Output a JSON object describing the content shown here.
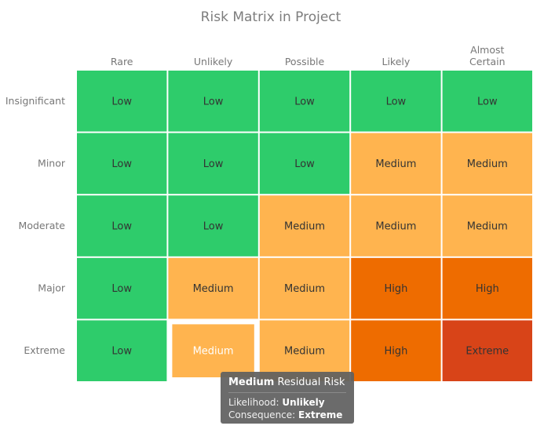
{
  "chart_data": {
    "type": "heatmap",
    "title": "Risk Matrix in Project",
    "x_categories": [
      "Rare",
      "Unlikely",
      "Possible",
      "Likely",
      [
        "Almost",
        "Certain"
      ]
    ],
    "y_categories": [
      "Insignificant",
      "Minor",
      "Moderate",
      "Major",
      "Extreme"
    ],
    "cells": [
      [
        "Low",
        "Low",
        "Low",
        "Low",
        "Low"
      ],
      [
        "Low",
        "Low",
        "Low",
        "Medium",
        "Medium"
      ],
      [
        "Low",
        "Low",
        "Medium",
        "Medium",
        "Medium"
      ],
      [
        "Low",
        "Medium",
        "Medium",
        "High",
        "High"
      ],
      [
        "Low",
        "Medium",
        "Medium",
        "High",
        "Extreme"
      ]
    ],
    "colors": {
      "Low": "#2ecc6b",
      "Medium": "#ffb44f",
      "High": "#ee6c00",
      "Extreme": "#d84418"
    },
    "highlighted": {
      "row": 4,
      "col": 1
    }
  },
  "tooltip": {
    "value": "Medium",
    "suffix": "Residual Risk",
    "likelihood_label": "Likelihood:",
    "likelihood_value": "Unlikely",
    "consequence_label": "Consequence:",
    "consequence_value": "Extreme"
  }
}
